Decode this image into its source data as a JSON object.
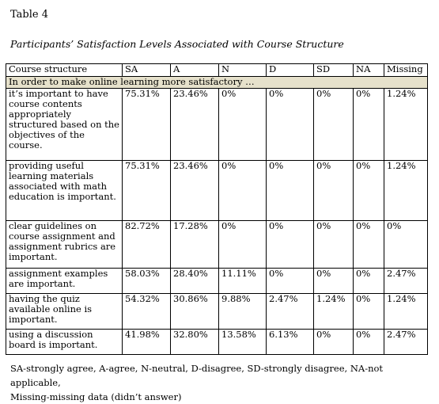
{
  "title": "Table 4",
  "caption": "Participants’ Satisfaction Levels Associated with Course Structure",
  "table": {
    "headers": [
      "Course structure",
      "SA",
      "A",
      "N",
      "D",
      "SD",
      "NA",
      "Missing"
    ],
    "section": "In order to make online learning more satisfactory …",
    "rows": [
      [
        "it’s important to have course contents appropriately structured based on the objectives of the course.",
        "75.31%",
        "23.46%",
        "0%",
        "0%",
        "0%",
        "0%",
        "1.24%"
      ],
      [
        "providing useful learning materials associated with math education is important.",
        "75.31%",
        "23.46%",
        "0%",
        "0%",
        "0%",
        "0%",
        "1.24%"
      ],
      [
        "clear guidelines on course assignment and assignment rubrics are important.",
        "82.72%",
        "17.28%",
        "0%",
        "0%",
        "0%",
        "0%",
        "0%"
      ],
      [
        "assignment examples are important.",
        "58.03%",
        "28.40%",
        "11.11%",
        "0%",
        "0%",
        "0%",
        "2.47%"
      ],
      [
        "having the quiz available online is important.",
        "54.32%",
        "30.86%",
        "9.88%",
        "2.47%",
        "1.24%",
        "0%",
        "1.24%"
      ],
      [
        "using a discussion board is important.",
        "41.98%",
        "32.80%",
        "13.58%",
        "6.13%",
        "0%",
        "0%",
        "2.47%"
      ]
    ]
  },
  "footnote": {
    "line1": "SA-strongly agree, A-agree, N-neutral, D-disagree, SD-strongly disagree, NA-not applicable,",
    "line2": "Missing-missing data (didn’t answer)"
  }
}
